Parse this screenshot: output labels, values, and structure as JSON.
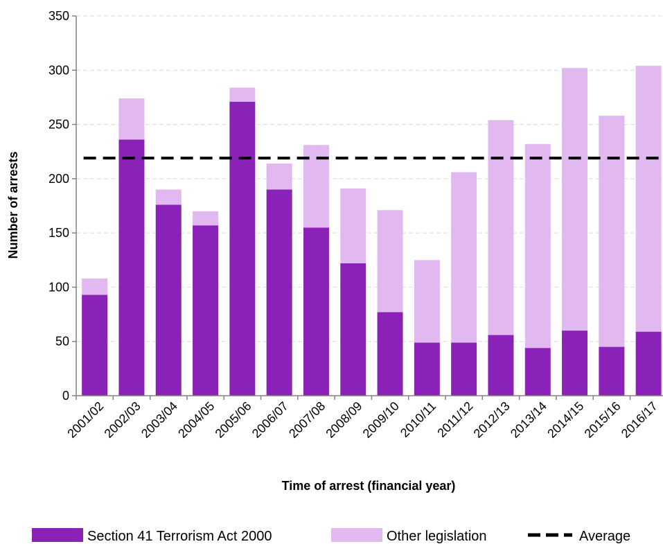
{
  "chart_data": {
    "type": "bar",
    "stacked": true,
    "title": "",
    "xlabel": "Time of arrest (financial year)",
    "ylabel": "Number of arrests",
    "ylim": [
      0,
      350
    ],
    "yticks": [
      0,
      50,
      100,
      150,
      200,
      250,
      300,
      350
    ],
    "grid": "horizontal dashed",
    "legend_position": "bottom",
    "categories": [
      "2001/02",
      "2002/03",
      "2003/04",
      "2004/05",
      "2005/06",
      "2006/07",
      "2007/08",
      "2008/09",
      "2009/10",
      "2010/11",
      "2011/12",
      "2012/13",
      "2013/14",
      "2014/15",
      "2015/16",
      "2016/17"
    ],
    "series": [
      {
        "name": "Section 41 Terrorism Act 2000",
        "color": "#8b22b8",
        "values": [
          93,
          236,
          176,
          157,
          271,
          190,
          155,
          122,
          77,
          49,
          49,
          56,
          44,
          60,
          45,
          59
        ]
      },
      {
        "name": "Other legislation",
        "color": "#e2b8f0",
        "values": [
          15,
          38,
          14,
          13,
          13,
          24,
          76,
          69,
          94,
          76,
          157,
          198,
          188,
          242,
          213,
          245
        ]
      }
    ],
    "average": {
      "name": "Average",
      "value": 219,
      "color": "#000000"
    }
  }
}
